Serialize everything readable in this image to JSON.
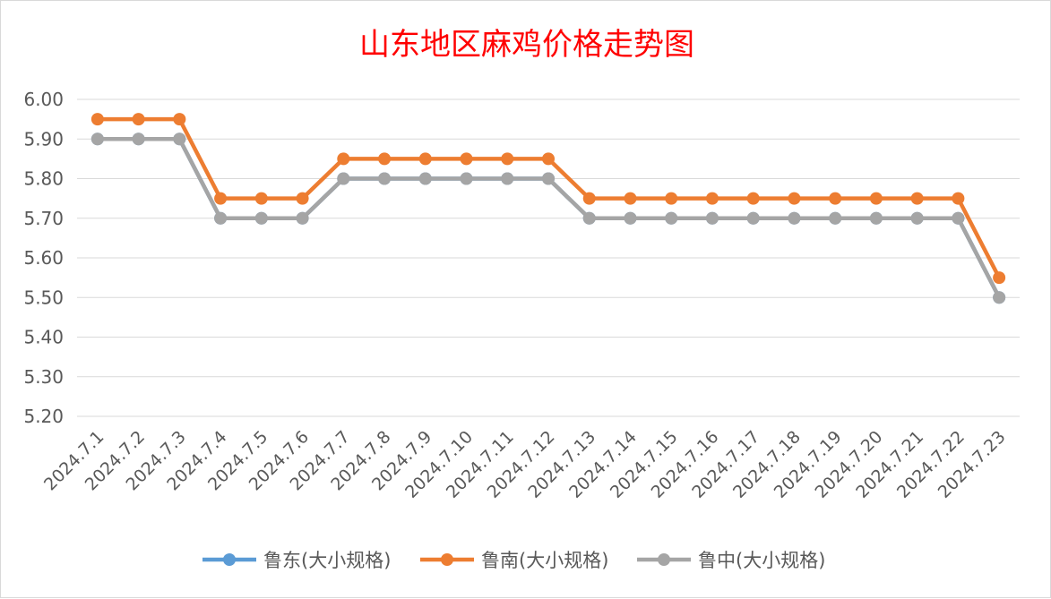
{
  "chart_data": {
    "type": "line",
    "title": "山东地区麻鸡价格走势图",
    "xlabel": "",
    "ylabel": "",
    "ylim": [
      5.2,
      6.0
    ],
    "yticks": [
      "5.20",
      "5.30",
      "5.40",
      "5.50",
      "5.60",
      "5.70",
      "5.80",
      "5.90",
      "6.00"
    ],
    "grid": true,
    "legend_position": "bottom",
    "categories": [
      "2024.7.1",
      "2024.7.2",
      "2024.7.3",
      "2024.7.4",
      "2024.7.5",
      "2024.7.6",
      "2024.7.7",
      "2024.7.8",
      "2024.7.9",
      "2024.7.10",
      "2024.7.11",
      "2024.7.12",
      "2024.7.13",
      "2024.7.14",
      "2024.7.15",
      "2024.7.16",
      "2024.7.17",
      "2024.7.18",
      "2024.7.19",
      "2024.7.20",
      "2024.7.21",
      "2024.7.22",
      "2024.7.23"
    ],
    "series": [
      {
        "name": "鲁东(大小规格)",
        "color": "#5b9bd5",
        "values": [
          5.9,
          5.9,
          5.9,
          5.7,
          5.7,
          5.7,
          5.8,
          5.8,
          5.8,
          5.8,
          5.8,
          5.8,
          5.7,
          5.7,
          5.7,
          5.7,
          5.7,
          5.7,
          5.7,
          5.7,
          5.7,
          5.7,
          5.5
        ]
      },
      {
        "name": "鲁南(大小规格)",
        "color": "#ed7d31",
        "values": [
          5.95,
          5.95,
          5.95,
          5.75,
          5.75,
          5.75,
          5.85,
          5.85,
          5.85,
          5.85,
          5.85,
          5.85,
          5.75,
          5.75,
          5.75,
          5.75,
          5.75,
          5.75,
          5.75,
          5.75,
          5.75,
          5.75,
          5.55
        ]
      },
      {
        "name": "鲁中(大小规格)",
        "color": "#a5a5a5",
        "values": [
          5.9,
          5.9,
          5.9,
          5.7,
          5.7,
          5.7,
          5.8,
          5.8,
          5.8,
          5.8,
          5.8,
          5.8,
          5.7,
          5.7,
          5.7,
          5.7,
          5.7,
          5.7,
          5.7,
          5.7,
          5.7,
          5.7,
          5.5
        ]
      }
    ]
  }
}
